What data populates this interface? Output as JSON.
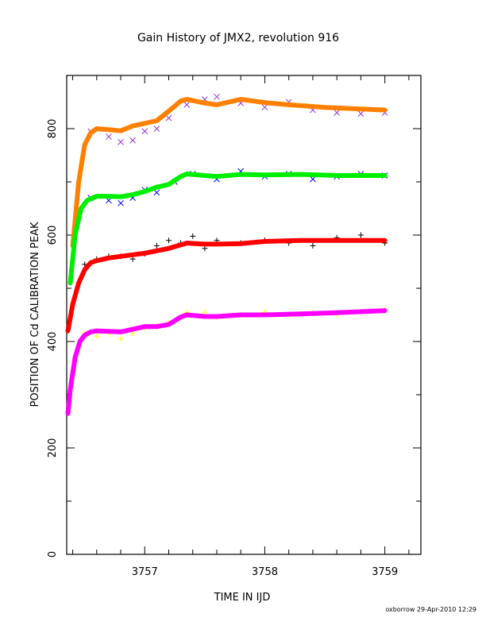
{
  "chart_data": {
    "type": "scatter",
    "title": "Gain History of JMX2, revolution 916",
    "xlabel": "TIME IN IJD",
    "ylabel": "POSITION OF Cd CALIBRATION PEAK",
    "footer": "oxborrow 29-Apr-2010 12:29",
    "xlim": [
      3756.35,
      3759.3
    ],
    "ylim": [
      0,
      900
    ],
    "x_ticks": [
      3757,
      3758,
      3759
    ],
    "y_ticks": [
      0,
      200,
      400,
      600,
      800
    ],
    "grid": false,
    "series": [
      {
        "style": "fit-line",
        "color": "#ff8000",
        "x": [
          3756.4,
          3756.45,
          3756.5,
          3756.55,
          3756.6,
          3756.7,
          3756.8,
          3756.9,
          3757.0,
          3757.1,
          3757.2,
          3757.3,
          3757.35,
          3757.5,
          3757.6,
          3757.8,
          3758.0,
          3758.2,
          3758.5,
          3758.8,
          3759.0
        ],
        "y": [
          580,
          700,
          770,
          792,
          800,
          798,
          796,
          805,
          810,
          815,
          833,
          852,
          855,
          848,
          845,
          855,
          849,
          845,
          840,
          837,
          835
        ]
      },
      {
        "style": "x-marks",
        "color": "#9933cc",
        "x": [
          3756.55,
          3756.7,
          3756.8,
          3756.9,
          3757.0,
          3757.1,
          3757.2,
          3757.35,
          3757.5,
          3757.6,
          3757.8,
          3758.0,
          3758.2,
          3758.4,
          3758.6,
          3758.8,
          3759.0
        ],
        "y": [
          795,
          785,
          775,
          778,
          795,
          800,
          820,
          845,
          855,
          860,
          848,
          840,
          850,
          835,
          830,
          828,
          830
        ]
      },
      {
        "style": "fit-line",
        "color": "#00ee00",
        "x": [
          3756.38,
          3756.42,
          3756.47,
          3756.52,
          3756.6,
          3756.7,
          3756.8,
          3756.9,
          3757.0,
          3757.1,
          3757.2,
          3757.3,
          3757.35,
          3757.5,
          3757.6,
          3757.8,
          3758.0,
          3758.3,
          3758.6,
          3759.0
        ],
        "y": [
          510,
          600,
          650,
          665,
          673,
          673,
          672,
          676,
          682,
          690,
          695,
          710,
          715,
          712,
          710,
          714,
          713,
          714,
          712,
          712
        ]
      },
      {
        "style": "x-marks",
        "color": "#0000ff",
        "x": [
          3756.55,
          3756.7,
          3756.8,
          3756.9,
          3757.0,
          3757.1,
          3757.25,
          3757.4,
          3757.6,
          3757.8,
          3758.0,
          3758.2,
          3758.4,
          3758.6,
          3758.8,
          3759.0
        ],
        "y": [
          670,
          665,
          660,
          670,
          685,
          680,
          700,
          715,
          705,
          720,
          710,
          715,
          705,
          710,
          715,
          712
        ]
      },
      {
        "style": "fit-line",
        "color": "#ff0000",
        "x": [
          3756.36,
          3756.4,
          3756.45,
          3756.5,
          3756.55,
          3756.6,
          3756.7,
          3756.8,
          3756.9,
          3757.0,
          3757.2,
          3757.35,
          3757.5,
          3757.6,
          3757.8,
          3758.0,
          3758.3,
          3758.6,
          3759.0
        ],
        "y": [
          420,
          470,
          510,
          535,
          548,
          552,
          557,
          560,
          563,
          566,
          575,
          585,
          583,
          583,
          584,
          588,
          590,
          590,
          590
        ]
      },
      {
        "style": "plus-marks",
        "color": "#000000",
        "x": [
          3756.5,
          3756.6,
          3756.7,
          3756.8,
          3756.9,
          3757.0,
          3757.1,
          3757.2,
          3757.3,
          3757.4,
          3757.5,
          3757.6,
          3757.8,
          3758.0,
          3758.2,
          3758.4,
          3758.6,
          3758.8,
          3759.0
        ],
        "y": [
          545,
          555,
          560,
          560,
          555,
          565,
          580,
          590,
          585,
          598,
          575,
          590,
          585,
          590,
          585,
          580,
          595,
          600,
          585
        ]
      },
      {
        "style": "plus-marks",
        "color": "#ffff00",
        "x": [
          3756.5,
          3756.6,
          3756.7,
          3756.8,
          3756.9,
          3757.0,
          3757.1,
          3757.2,
          3757.35,
          3757.5,
          3757.6,
          3757.8,
          3758.0,
          3758.2,
          3758.4,
          3758.6,
          3758.8,
          3759.0
        ],
        "y": [
          415,
          410,
          415,
          405,
          415,
          425,
          430,
          435,
          455,
          455,
          445,
          450,
          455,
          450,
          455,
          450,
          455,
          460
        ]
      },
      {
        "style": "fit-line",
        "color": "#ff00ff",
        "x": [
          3756.36,
          3756.38,
          3756.42,
          3756.46,
          3756.5,
          3756.55,
          3756.6,
          3756.7,
          3756.8,
          3756.9,
          3757.0,
          3757.1,
          3757.2,
          3757.3,
          3757.35,
          3757.5,
          3757.6,
          3757.8,
          3758.0,
          3758.3,
          3758.6,
          3759.0
        ],
        "y": [
          265,
          310,
          370,
          400,
          412,
          418,
          420,
          419,
          418,
          423,
          428,
          428,
          432,
          446,
          450,
          447,
          447,
          450,
          450,
          452,
          454,
          458
        ]
      }
    ]
  }
}
